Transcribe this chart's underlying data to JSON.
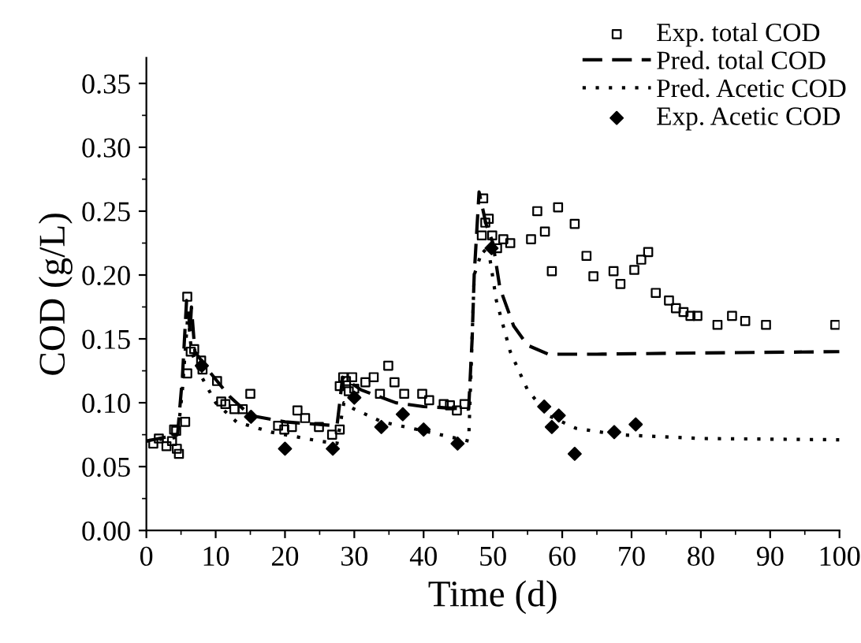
{
  "chart_data": {
    "type": "scatter",
    "xlabel": "Time (d)",
    "ylabel": "COD (g/L)",
    "xlim": [
      0,
      100
    ],
    "ylim": [
      0,
      0.37
    ],
    "xticks": [
      0,
      10,
      20,
      30,
      40,
      50,
      60,
      70,
      80,
      90,
      100
    ],
    "yticks": [
      {
        "value": 0,
        "label": "0.00"
      },
      {
        "value": 0.05,
        "label": "0.05"
      },
      {
        "value": 0.1,
        "label": "0.10"
      },
      {
        "value": 0.15,
        "label": "0.15"
      },
      {
        "value": 0.2,
        "label": "0.20"
      },
      {
        "value": 0.25,
        "label": "0.25"
      },
      {
        "value": 0.3,
        "label": "0.30"
      },
      {
        "value": 0.35,
        "label": "0.35"
      }
    ],
    "grid": false,
    "legend": "top right",
    "series": [
      {
        "name": "Exp. total COD",
        "marker": "square",
        "color": "#000000",
        "x": [
          1.0,
          1.8,
          2.9,
          3.7,
          4.0,
          4.3,
          4.4,
          4.7,
          5.6,
          5.9,
          5.9,
          6.4,
          6.9,
          7.9,
          8.1,
          10.2,
          10.8,
          11.4,
          12.7,
          13.9,
          15.0,
          19.0,
          19.9,
          21.0,
          21.8,
          22.9,
          24.9,
          26.8,
          27.9,
          27.9,
          28.4,
          28.8,
          29.2,
          29.7,
          30.0,
          31.6,
          32.8,
          33.7,
          34.9,
          35.8,
          37.2,
          39.8,
          40.8,
          42.9,
          43.8,
          44.8,
          45.9,
          48.6,
          48.4,
          48.9,
          49.4,
          49.9,
          50.6,
          51.5,
          52.5,
          55.5,
          56.4,
          57.5,
          58.5,
          59.4,
          61.8,
          63.5,
          64.5,
          67.4,
          68.4,
          70.4,
          71.4,
          72.4,
          73.5,
          75.4,
          76.4,
          77.5,
          78.5,
          79.5,
          82.4,
          84.5,
          86.4,
          89.4,
          99.4
        ],
        "values": [
          0.068,
          0.072,
          0.066,
          0.07,
          0.079,
          0.078,
          0.064,
          0.06,
          0.085,
          0.123,
          0.183,
          0.14,
          0.142,
          0.133,
          0.126,
          0.117,
          0.101,
          0.099,
          0.095,
          0.095,
          0.107,
          0.082,
          0.079,
          0.081,
          0.094,
          0.088,
          0.081,
          0.075,
          0.079,
          0.113,
          0.12,
          0.117,
          0.109,
          0.12,
          0.111,
          0.116,
          0.12,
          0.107,
          0.129,
          0.116,
          0.107,
          0.107,
          0.102,
          0.099,
          0.098,
          0.094,
          0.099,
          0.26,
          0.231,
          0.241,
          0.244,
          0.231,
          0.221,
          0.228,
          0.225,
          0.228,
          0.25,
          0.234,
          0.203,
          0.253,
          0.24,
          0.215,
          0.199,
          0.203,
          0.193,
          0.204,
          0.212,
          0.218,
          0.186,
          0.18,
          0.174,
          0.171,
          0.168,
          0.168,
          0.161,
          0.168,
          0.164,
          0.161,
          0.161
        ]
      },
      {
        "name": "Pred. total COD",
        "type": "line",
        "line_style": "dashed",
        "color": "#000000",
        "x": [
          0,
          4.5,
          5.2,
          5.8,
          6.1,
          6.3,
          6.5,
          7,
          9,
          12,
          15,
          20,
          27.5,
          27.9,
          28.3,
          31,
          36,
          40,
          46.5,
          47,
          47.3,
          48,
          49,
          50,
          51,
          53,
          55,
          58,
          65,
          80,
          100
        ],
        "values": [
          0.07,
          0.075,
          0.12,
          0.18,
          0.17,
          0.155,
          0.175,
          0.14,
          0.125,
          0.105,
          0.09,
          0.085,
          0.082,
          0.1,
          0.12,
          0.11,
          0.1,
          0.097,
          0.095,
          0.15,
          0.2,
          0.265,
          0.24,
          0.225,
          0.19,
          0.16,
          0.145,
          0.138,
          0.138,
          0.139,
          0.14
        ]
      },
      {
        "name": "Pred. Acetic COD",
        "type": "line",
        "line_style": "dotted",
        "color": "#000000",
        "x": [
          0,
          4.5,
          5.2,
          6,
          6.5,
          8,
          10,
          13,
          18,
          25,
          27.5,
          28.5,
          30,
          34,
          40,
          46.5,
          47.3,
          48.5,
          49.5,
          50.5,
          52.5,
          55,
          58,
          62,
          68,
          80,
          100
        ],
        "values": [
          0.07,
          0.073,
          0.11,
          0.17,
          0.14,
          0.12,
          0.1,
          0.085,
          0.077,
          0.07,
          0.068,
          0.1,
          0.095,
          0.085,
          0.078,
          0.07,
          0.2,
          0.22,
          0.215,
          0.18,
          0.14,
          0.11,
          0.09,
          0.08,
          0.075,
          0.072,
          0.071
        ]
      },
      {
        "name": "Exp. Acetic COD",
        "marker": "diamond",
        "color": "#000000",
        "x": [
          8.0,
          15.1,
          20,
          26.9,
          30,
          33.9,
          37,
          40,
          44.9,
          49.8,
          57.4,
          58.5,
          59.5,
          61.8,
          67.5,
          70.6
        ],
        "values": [
          0.129,
          0.089,
          0.064,
          0.064,
          0.104,
          0.081,
          0.091,
          0.079,
          0.068,
          0.221,
          0.097,
          0.081,
          0.09,
          0.06,
          0.077,
          0.083
        ]
      }
    ]
  }
}
